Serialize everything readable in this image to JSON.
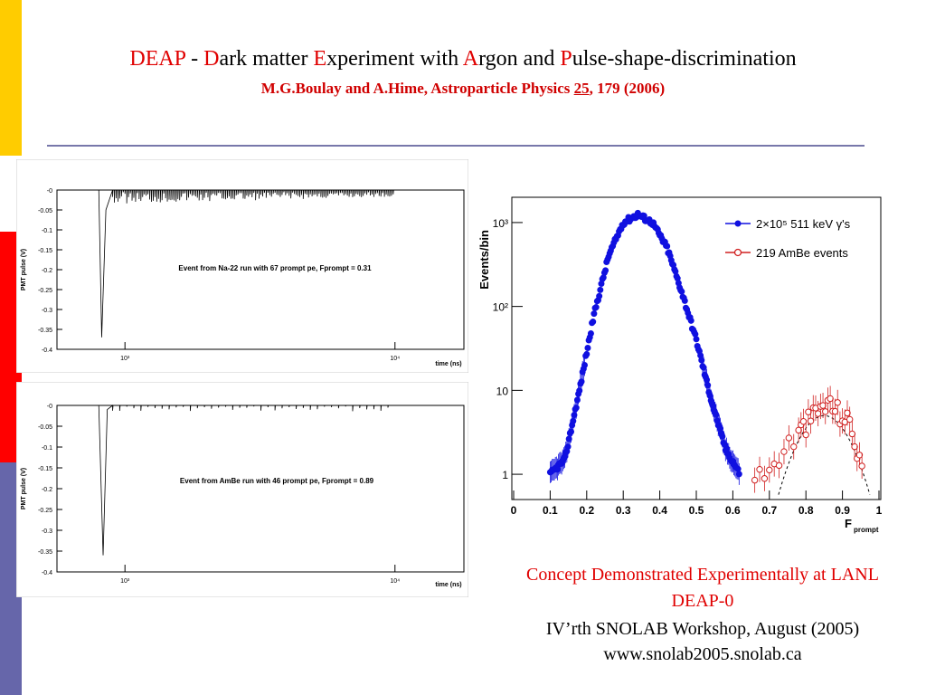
{
  "slide": {
    "title_parts": [
      {
        "text": "DEAP",
        "red": true
      },
      {
        "text": " - ",
        "red": false
      },
      {
        "text": "D",
        "red": true
      },
      {
        "text": "ark matter ",
        "red": false
      },
      {
        "text": "E",
        "red": true
      },
      {
        "text": "xperiment with ",
        "red": false
      },
      {
        "text": "A",
        "red": true
      },
      {
        "text": "rgon and ",
        "red": false
      },
      {
        "text": "P",
        "red": true
      },
      {
        "text": "ulse-shape-discrimination",
        "red": false
      }
    ],
    "reference_authors": "M.G.Boulay and A.Hime, Astroparticle Physics ",
    "reference_volume": "25",
    "reference_tail": ", 179 (2006)",
    "caption_line1": "Concept Demonstrated Experimentally at LANL",
    "caption_line2": "DEAP-0",
    "caption_line3": "IV’rth SNOLAB Workshop, August (2005)",
    "caption_line4": "www.snolab2005.snolab.ca",
    "colors": {
      "accent_red": "#e00000",
      "bar_yellow": "#ffcc00",
      "bar_red": "#ff0000",
      "bar_blue": "#6666aa",
      "rule": "#7777aa"
    }
  },
  "chart_data": [
    {
      "type": "line",
      "ylabel": "PMT pulse (V)",
      "xlabel": "time (ns)",
      "x_scale": "log",
      "xlim": [
        560,
        18000
      ],
      "ylim": [
        -0.4,
        0.0
      ],
      "x_ticks": [
        "10³",
        "10⁴"
      ],
      "y_ticks": [
        "-0",
        "-0.05",
        "-0.1",
        "-0.15",
        "-0.2",
        "-0.25",
        "-0.3",
        "-0.35",
        "-0.4"
      ],
      "annotation": "Event from Na-22 run with 67 prompt pe, Fprompt = 0.31",
      "series": [
        {
          "values": [
            [
              800,
              0
            ],
            [
              820,
              -0.37
            ],
            [
              850,
              -0.05
            ],
            [
              1000,
              -0.03
            ],
            [
              10000,
              0
            ]
          ]
        }
      ]
    },
    {
      "type": "line",
      "ylabel": "PMT pulse (V)",
      "xlabel": "time (ns)",
      "x_scale": "log",
      "xlim": [
        560,
        18000
      ],
      "ylim": [
        -0.4,
        0.0
      ],
      "x_ticks": [
        "10³",
        "10⁴"
      ],
      "y_ticks": [
        "-0",
        "-0.05",
        "-0.1",
        "-0.15",
        "-0.2",
        "-0.25",
        "-0.3",
        "-0.35",
        "-0.4"
      ],
      "annotation": "Event from AmBe run with 46 prompt pe, Fprompt = 0.89",
      "series": [
        {
          "values": [
            [
              800,
              0
            ],
            [
              830,
              -0.36
            ],
            [
              860,
              -0.01
            ],
            [
              10000,
              0
            ]
          ]
        }
      ]
    },
    {
      "type": "scatter",
      "ylabel": "Events/bin",
      "xlabel": "F",
      "xlabel_sub": "prompt",
      "y_scale": "log",
      "xlim": [
        0,
        1
      ],
      "ylim": [
        0.5,
        2000
      ],
      "x_ticks": [
        "0",
        "0.1",
        "0.2",
        "0.3",
        "0.4",
        "0.5",
        "0.6",
        "0.7",
        "0.8",
        "0.9",
        "1"
      ],
      "y_ticks": [
        "1",
        "10",
        "10²",
        "10³"
      ],
      "legend_position": "top-right",
      "series": [
        {
          "name": "2×10⁵ 511 keV γ's",
          "color": "#1010e0",
          "marker": "filled-circle",
          "x": [
            0.1,
            0.14,
            0.18,
            0.22,
            0.26,
            0.3,
            0.34,
            0.38,
            0.42,
            0.46,
            0.5,
            0.54,
            0.58,
            0.62
          ],
          "y": [
            1,
            1.5,
            10,
            80,
            400,
            1000,
            1250,
            1000,
            500,
            150,
            40,
            8,
            2,
            1
          ]
        },
        {
          "name": "219 AmBe events",
          "color": "#d02020",
          "marker": "open-circle",
          "x": [
            0.66,
            0.7,
            0.74,
            0.78,
            0.8,
            0.82,
            0.84,
            0.86,
            0.88,
            0.9,
            0.92,
            0.94,
            0.96
          ],
          "y": [
            1,
            1,
            2,
            3,
            4,
            5,
            6,
            7,
            6,
            5,
            4,
            2,
            1
          ]
        }
      ]
    }
  ]
}
